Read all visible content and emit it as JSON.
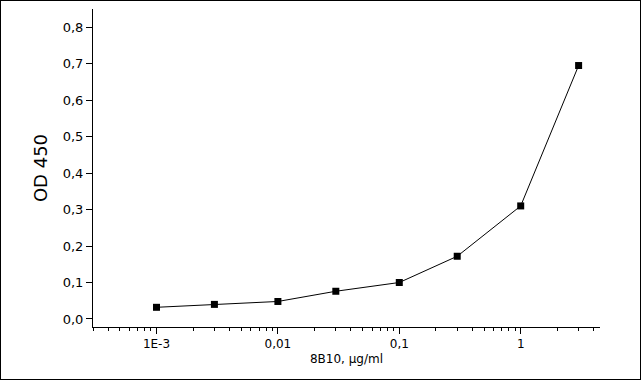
{
  "chart_data": {
    "type": "line",
    "x_label": "8B10, µg/ml",
    "y_label": "OD 450",
    "x": [
      0.001,
      0.003,
      0.01,
      0.03,
      0.1,
      0.3,
      1,
      3
    ],
    "values": [
      0.032,
      0.04,
      0.048,
      0.076,
      0.1,
      0.172,
      0.31,
      0.695
    ],
    "color": "#000000",
    "marker": "square",
    "line_style": "solid",
    "log": "x",
    "grid": false,
    "xlim": [
      0.0003,
      4.5
    ],
    "xticks": [
      {
        "value": 0.001,
        "label": "1E-3"
      },
      {
        "value": 0.01,
        "label": "0,01"
      },
      {
        "value": 0.1,
        "label": "0,1"
      },
      1
    ],
    "ylim": [
      -0.022,
      0.85
    ],
    "yticks": [
      {
        "value": 0,
        "label": "0,0"
      },
      {
        "value": 0.1,
        "label": "0,1"
      },
      {
        "value": 0.2,
        "label": "0,2"
      },
      {
        "value": 0.3,
        "label": "0,3"
      },
      {
        "value": 0.4,
        "label": "0,4"
      },
      {
        "value": 0.5,
        "label": "0,5"
      },
      {
        "value": 0.6,
        "label": "0,6"
      },
      {
        "value": 0.7,
        "label": "0,7"
      },
      {
        "value": 0.8,
        "label": "0,8"
      }
    ]
  }
}
